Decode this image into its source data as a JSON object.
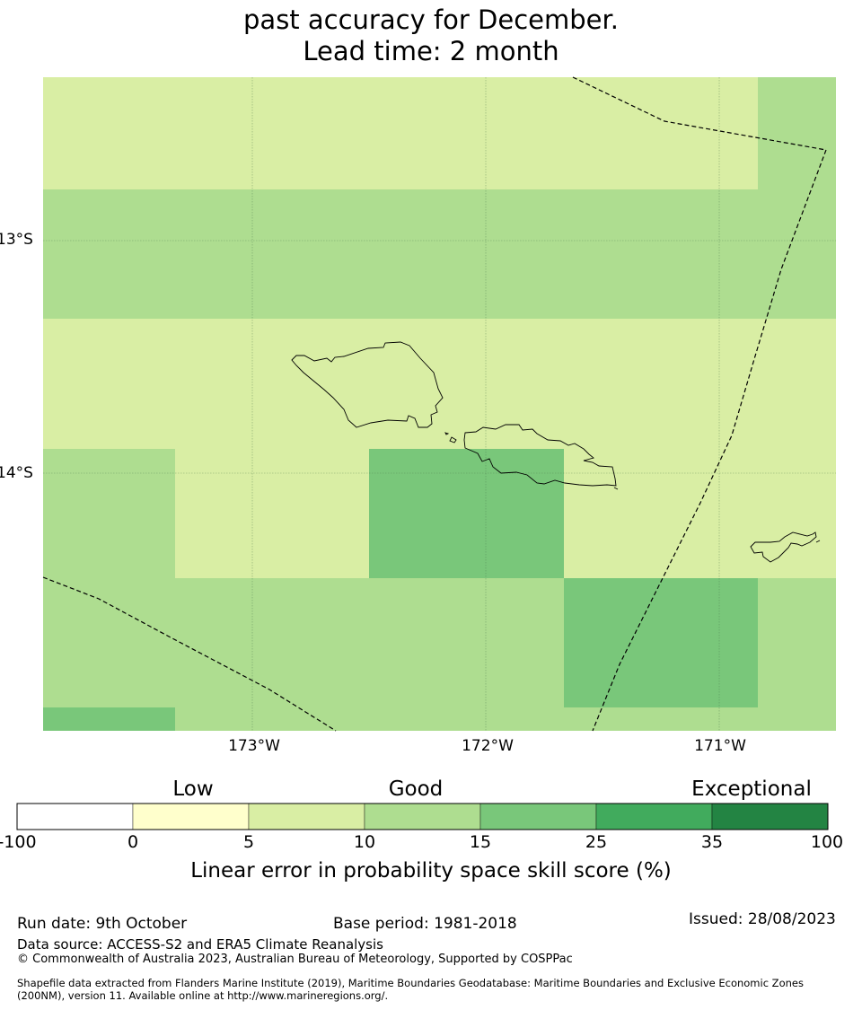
{
  "title": {
    "line1": "past accuracy for December.",
    "line2": "Lead time: 2 month"
  },
  "map": {
    "lat_labels": [
      "13°S",
      "14°S"
    ],
    "lon_labels": [
      "173°W",
      "172°W",
      "171°W"
    ],
    "colors": {
      "good_10_15": "#aedd90",
      "mid_5_10": "#d9eea4",
      "high_15_25": "#79c77a",
      "land_outline": "#000000",
      "boundary_line": "#000000",
      "gridline": "#5a8a5a"
    }
  },
  "colorbar": {
    "category_labels": {
      "low": "Low",
      "good": "Good",
      "exceptional": "Exceptional"
    },
    "ticks": [
      "-100",
      "0",
      "5",
      "10",
      "15",
      "25",
      "35",
      "100"
    ],
    "segment_colors": [
      "#ffffff",
      "#ffffcc",
      "#d9eea4",
      "#aedd90",
      "#79c77a",
      "#41ab5d",
      "#238443"
    ],
    "title": "Linear error in probability space skill score (%)"
  },
  "footer": {
    "run_date": "Run date: 9th October",
    "base_period": "Base period: 1981-2018",
    "issued": "Issued: 28/08/2023",
    "data_source": "Data source: ACCESS-S2 and ERA5 Climate Reanalysis",
    "copyright": "© Commonwealth of Australia 2023, Australian Bureau of Meteorology, Supported by COSPPac",
    "shapefile_line1": "Shapefile data extracted from Flanders Marine Institute (2019), Maritime Boundaries Geodatabase: Maritime Boundaries and Exclusive Economic Zones",
    "shapefile_line2": "(200NM), version 11. Available online at http://www.marineregions.org/."
  }
}
